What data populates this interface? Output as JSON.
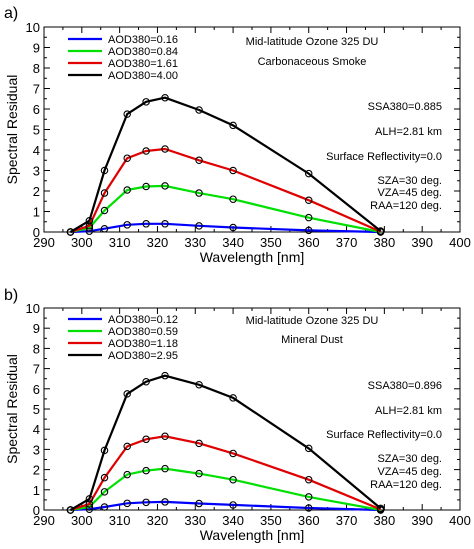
{
  "chart_data": [
    {
      "type": "line",
      "panel_label": "a)",
      "xlabel": "Wavelength [nm]",
      "ylabel": "Spectral Residual",
      "xlim": [
        290,
        400
      ],
      "ylim": [
        0,
        10
      ],
      "xticks": [
        290,
        300,
        310,
        320,
        330,
        340,
        350,
        360,
        370,
        380,
        390,
        400
      ],
      "yticks": [
        0,
        1,
        2,
        3,
        4,
        5,
        6,
        7,
        8,
        9,
        10
      ],
      "grid": false,
      "legend_position": "top-left",
      "x": [
        297,
        302,
        306,
        312,
        317,
        322,
        331,
        340,
        360,
        379
      ],
      "annotations": [
        "Mid-latitude Ozone 325 DU",
        "Carbonaceous Smoke",
        "SSA380=0.885",
        "ALH=2.81 km",
        "Surface Reflectivity=0.0",
        "SZA=30 deg.",
        "VZA=45 deg.",
        "RAA=120 deg."
      ],
      "series": [
        {
          "name": "AOD380=0.16",
          "color": "#0000ff",
          "values": [
            0,
            0.04,
            0.16,
            0.35,
            0.4,
            0.4,
            0.3,
            0.22,
            0.08,
            0
          ]
        },
        {
          "name": "AOD380=0.84",
          "color": "#00e000",
          "values": [
            0,
            0.2,
            1.05,
            2.05,
            2.22,
            2.25,
            1.9,
            1.6,
            0.7,
            0
          ]
        },
        {
          "name": "AOD380=1.61",
          "color": "#e00000",
          "values": [
            0,
            0.3,
            1.9,
            3.6,
            3.95,
            4.05,
            3.5,
            3.0,
            1.55,
            0.02
          ]
        },
        {
          "name": "AOD380=4.00",
          "color": "#000000",
          "values": [
            0,
            0.55,
            3.0,
            5.75,
            6.35,
            6.55,
            5.95,
            5.2,
            2.85,
            0.05
          ]
        }
      ]
    },
    {
      "type": "line",
      "panel_label": "b)",
      "xlabel": "Wavelength [nm]",
      "ylabel": "Spectral Residual",
      "xlim": [
        290,
        400
      ],
      "ylim": [
        0,
        10
      ],
      "xticks": [
        290,
        300,
        310,
        320,
        330,
        340,
        350,
        360,
        370,
        380,
        390,
        400
      ],
      "yticks": [
        0,
        1,
        2,
        3,
        4,
        5,
        6,
        7,
        8,
        9,
        10
      ],
      "grid": false,
      "legend_position": "top-left",
      "x": [
        297,
        302,
        306,
        312,
        317,
        322,
        331,
        340,
        360,
        379
      ],
      "annotations": [
        "Mid-latitude Ozone 325 DU",
        "Mineral Dust",
        "SSA380=0.896",
        "ALH=2.81 km",
        "Surface Reflectivity=0.0",
        "SZA=30 deg.",
        "VZA=45 deg.",
        "RAA=120 deg."
      ],
      "series": [
        {
          "name": "AOD380=0.12",
          "color": "#0000ff",
          "values": [
            0,
            0.04,
            0.15,
            0.33,
            0.38,
            0.4,
            0.32,
            0.25,
            0.1,
            0
          ]
        },
        {
          "name": "AOD380=0.59",
          "color": "#00e000",
          "values": [
            0,
            0.15,
            0.9,
            1.75,
            1.95,
            2.05,
            1.8,
            1.5,
            0.65,
            0
          ]
        },
        {
          "name": "AOD380=1.18",
          "color": "#e00000",
          "values": [
            0,
            0.3,
            1.6,
            3.15,
            3.5,
            3.65,
            3.3,
            2.8,
            1.5,
            0.03
          ]
        },
        {
          "name": "AOD380=2.95",
          "color": "#000000",
          "values": [
            0,
            0.55,
            2.95,
            5.75,
            6.35,
            6.65,
            6.2,
            5.55,
            3.05,
            0.08
          ]
        }
      ]
    }
  ]
}
